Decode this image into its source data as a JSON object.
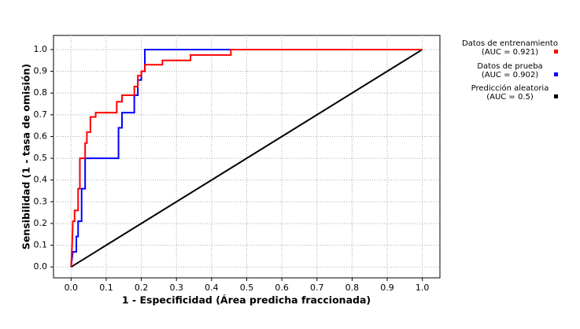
{
  "chart_data": {
    "type": "line",
    "x_label": "1 - Especificidad (Área predicha fraccionada)",
    "y_label": "Sensibilidad (1 - tasa de omisión)",
    "xlim": [
      -0.05,
      1.05
    ],
    "ylim": [
      -0.05,
      1.065
    ],
    "xticks": [
      {
        "value": 0,
        "label": "0.0"
      },
      0.1,
      0.2,
      0.3,
      0.4,
      0.5,
      0.6,
      0.7,
      0.8,
      0.9,
      {
        "value": 1,
        "label": "1.0"
      }
    ],
    "yticks": [
      {
        "value": 0,
        "label": "0.0"
      },
      0.1,
      0.2,
      0.3,
      0.4,
      0.5,
      0.6,
      0.7,
      0.8,
      0.9,
      {
        "value": 1,
        "label": "1.0"
      }
    ],
    "grid": true,
    "legend": "right",
    "series": [
      {
        "name": "Datos de entrenamiento",
        "auc_label": "(AUC = 0.921)",
        "color": "#ff0000",
        "x": [
          0,
          0.003,
          0.005,
          0.01,
          0.01,
          0.02,
          0.02,
          0.025,
          0.025,
          0.04,
          0.04,
          0.045,
          0.045,
          0.055,
          0.055,
          0.07,
          0.07,
          0.13,
          0.13,
          0.145,
          0.145,
          0.18,
          0.18,
          0.19,
          0.19,
          0.2,
          0.2,
          0.21,
          0.21,
          0.26,
          0.26,
          0.34,
          0.34,
          0.455,
          0.455,
          1
        ],
        "values": [
          0,
          0.1,
          0.21,
          0.21,
          0.26,
          0.26,
          0.36,
          0.36,
          0.5,
          0.5,
          0.57,
          0.57,
          0.62,
          0.62,
          0.69,
          0.69,
          0.71,
          0.71,
          0.76,
          0.76,
          0.79,
          0.79,
          0.83,
          0.83,
          0.88,
          0.88,
          0.9,
          0.9,
          0.93,
          0.93,
          0.95,
          0.95,
          0.975,
          0.975,
          1,
          1
        ]
      },
      {
        "name": "Datos de prueba",
        "auc_label": "(AUC = 0.902)",
        "color": "#0000ff",
        "x": [
          0,
          0.005,
          0.015,
          0.015,
          0.02,
          0.02,
          0.03,
          0.03,
          0.04,
          0.04,
          0.135,
          0.135,
          0.145,
          0.145,
          0.18,
          0.18,
          0.19,
          0.19,
          0.2,
          0.2,
          0.21,
          0.21,
          1
        ],
        "values": [
          0,
          0.07,
          0.07,
          0.14,
          0.14,
          0.21,
          0.21,
          0.36,
          0.36,
          0.5,
          0.5,
          0.64,
          0.64,
          0.71,
          0.71,
          0.79,
          0.79,
          0.86,
          0.86,
          0.9,
          0.9,
          1,
          1
        ]
      },
      {
        "name": "Predicción aleatoria",
        "auc_label": "(AUC = 0.5)",
        "color": "#000000",
        "x": [
          0,
          1
        ],
        "values": [
          0,
          1
        ]
      }
    ]
  }
}
